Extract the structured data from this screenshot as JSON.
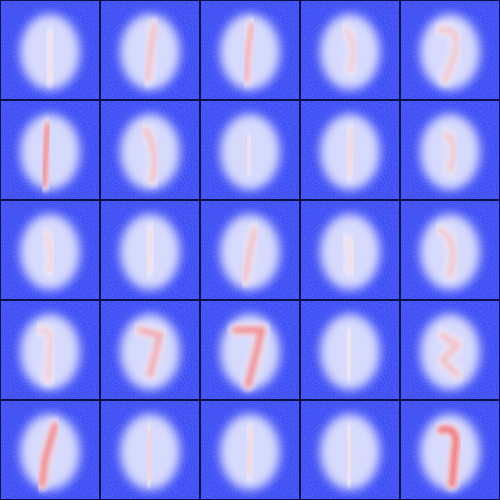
{
  "grid": {
    "rows": 5,
    "columns": 5,
    "background": "#2a3cf5",
    "border": "#0b1248",
    "blob": "#eef0ff",
    "highlight": "#f24a4a"
  }
}
